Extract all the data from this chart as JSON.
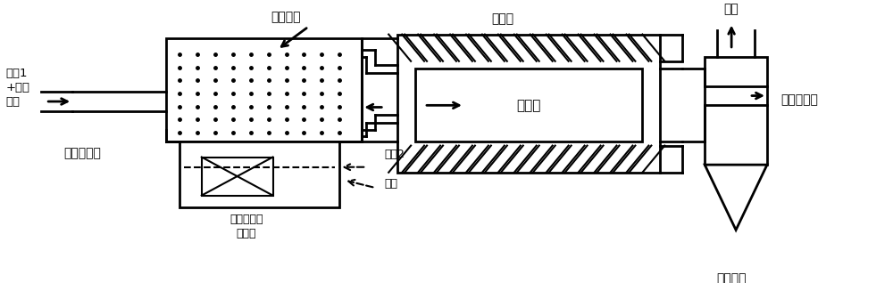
{
  "bg_color": "#ffffff",
  "labels": {
    "carrier_gas1": "载气1\n+球磨\n物料",
    "mist_zone": "雾滴区域",
    "heater": "加热器",
    "tube_furnace": "管式炉",
    "ultrasonic_atomizer": "超声雾化器",
    "immersed_transducer": "浸入式超声\n换能器",
    "carrier_gas2": "载气2",
    "solution": "溶液",
    "cyclone_separator": "旋风分离器",
    "exhaust": "废气",
    "collected_material": "收集物料"
  }
}
